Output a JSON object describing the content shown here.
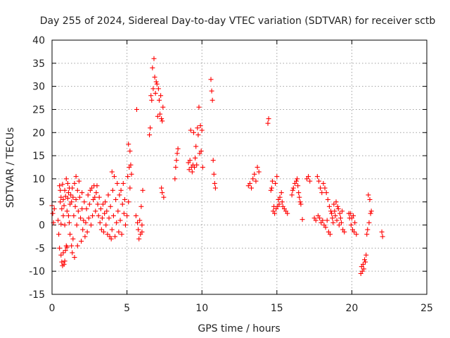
{
  "chart_data": {
    "type": "scatter",
    "title": "Day 255 of 2024, Sidereal Day-to-day VTEC variation (SDTVAR) for receiver sctb",
    "xlabel": "GPS time / hours",
    "ylabel": "SDTVAR / TECUs",
    "xlim": [
      0,
      25
    ],
    "ylim": [
      -15,
      40
    ],
    "x_ticks": [
      0,
      5,
      10,
      15,
      20,
      25
    ],
    "y_ticks": [
      -15,
      -10,
      -5,
      0,
      5,
      10,
      15,
      20,
      25,
      30,
      35,
      40
    ],
    "x_tick_labels": [
      "0",
      "5",
      "10",
      "15",
      "20",
      "25"
    ],
    "y_tick_labels": [
      "-15",
      "-10",
      "-5",
      "0",
      "5",
      "10",
      "15",
      "20",
      "25",
      "30",
      "35",
      "40"
    ],
    "grid": true,
    "marker": "plus",
    "marker_color": "#ff0000",
    "series": [
      {
        "name": "sctb",
        "points": [
          [
            0.0,
            4.2
          ],
          [
            0.05,
            2.5
          ],
          [
            0.1,
            0.5
          ],
          [
            0.15,
            3.5
          ],
          [
            0.4,
            1.0
          ],
          [
            0.45,
            -2.0
          ],
          [
            0.5,
            -5.0
          ],
          [
            0.5,
            8.5
          ],
          [
            0.55,
            5.0
          ],
          [
            0.55,
            7.5
          ],
          [
            0.6,
            -6.5
          ],
          [
            0.6,
            0.2
          ],
          [
            0.6,
            6.0
          ],
          [
            0.65,
            -8.0
          ],
          [
            0.65,
            3.5
          ],
          [
            0.7,
            -8.8
          ],
          [
            0.7,
            8.8
          ],
          [
            0.75,
            -6.0
          ],
          [
            0.75,
            2.0
          ],
          [
            0.75,
            5.5
          ],
          [
            0.8,
            -8.5
          ],
          [
            0.8,
            4.2
          ],
          [
            0.85,
            -7.8
          ],
          [
            0.85,
            0.0
          ],
          [
            0.85,
            7.5
          ],
          [
            0.9,
            -5.5
          ],
          [
            0.9,
            6.2
          ],
          [
            0.95,
            -4.5
          ],
          [
            0.95,
            10.0
          ],
          [
            1.0,
            -4.8
          ],
          [
            1.0,
            3.0
          ],
          [
            1.05,
            5.8
          ],
          [
            1.05,
            9.0
          ],
          [
            1.1,
            2.0
          ],
          [
            1.1,
            7.0
          ],
          [
            1.15,
            0.5
          ],
          [
            1.15,
            8.0
          ],
          [
            1.2,
            -2.0
          ],
          [
            1.2,
            4.5
          ],
          [
            1.25,
            6.5
          ],
          [
            1.3,
            -4.5
          ],
          [
            1.3,
            5.0
          ],
          [
            1.35,
            -6.0
          ],
          [
            1.35,
            8.0
          ],
          [
            1.4,
            -3.0
          ],
          [
            1.4,
            6.0
          ],
          [
            1.45,
            2.0
          ],
          [
            1.5,
            -7.0
          ],
          [
            1.5,
            9.0
          ],
          [
            1.55,
            4.0
          ],
          [
            1.6,
            5.5
          ],
          [
            1.6,
            10.5
          ],
          [
            1.65,
            0.0
          ],
          [
            1.7,
            7.5
          ],
          [
            1.7,
            -4.5
          ],
          [
            1.75,
            3.0
          ],
          [
            1.8,
            9.5
          ],
          [
            1.85,
            6.0
          ],
          [
            1.9,
            1.5
          ],
          [
            1.95,
            -3.5
          ],
          [
            2.0,
            3.5
          ],
          [
            2.0,
            7.0
          ],
          [
            2.05,
            -1.0
          ],
          [
            2.1,
            1.0
          ],
          [
            2.15,
            5.0
          ],
          [
            2.2,
            -2.5
          ],
          [
            2.25,
            0.5
          ],
          [
            2.3,
            3.5
          ],
          [
            2.35,
            -1.5
          ],
          [
            2.4,
            6.5
          ],
          [
            2.45,
            1.5
          ],
          [
            2.5,
            4.5
          ],
          [
            2.55,
            7.5
          ],
          [
            2.6,
            0.0
          ],
          [
            2.65,
            8.0
          ],
          [
            2.7,
            2.0
          ],
          [
            2.75,
            5.5
          ],
          [
            2.8,
            8.5
          ],
          [
            2.85,
            6.0
          ],
          [
            2.9,
            3.0
          ],
          [
            2.95,
            7.0
          ],
          [
            3.0,
            8.5
          ],
          [
            3.05,
            4.5
          ],
          [
            3.1,
            2.0
          ],
          [
            3.15,
            6.0
          ],
          [
            3.2,
            0.5
          ],
          [
            3.25,
            3.5
          ],
          [
            3.3,
            -1.0
          ],
          [
            3.35,
            1.5
          ],
          [
            3.4,
            4.5
          ],
          [
            3.45,
            -1.5
          ],
          [
            3.5,
            2.5
          ],
          [
            3.55,
            5.0
          ],
          [
            3.6,
            0.0
          ],
          [
            3.65,
            3.0
          ],
          [
            3.7,
            -2.0
          ],
          [
            3.75,
            6.5
          ],
          [
            3.8,
            1.5
          ],
          [
            3.85,
            -2.5
          ],
          [
            3.9,
            4.0
          ],
          [
            3.95,
            -3.0
          ],
          [
            4.0,
            11.5
          ],
          [
            4.0,
            -1.0
          ],
          [
            4.05,
            7.5
          ],
          [
            4.1,
            2.0
          ],
          [
            4.15,
            10.5
          ],
          [
            4.2,
            -2.5
          ],
          [
            4.25,
            5.5
          ],
          [
            4.3,
            0.5
          ],
          [
            4.35,
            9.0
          ],
          [
            4.4,
            3.0
          ],
          [
            4.45,
            -1.5
          ],
          [
            4.5,
            6.5
          ],
          [
            4.55,
            1.0
          ],
          [
            4.6,
            7.5
          ],
          [
            4.65,
            -2.0
          ],
          [
            4.7,
            4.5
          ],
          [
            4.75,
            9.0
          ],
          [
            4.8,
            2.5
          ],
          [
            4.85,
            5.5
          ],
          [
            4.9,
            0.0
          ],
          [
            5.0,
            2.0
          ],
          [
            5.05,
            10.5
          ],
          [
            5.1,
            17.5
          ],
          [
            5.1,
            5.0
          ],
          [
            5.15,
            12.5
          ],
          [
            5.2,
            16.0
          ],
          [
            5.2,
            8.0
          ],
          [
            5.25,
            13.0
          ],
          [
            5.3,
            11.0
          ],
          [
            5.6,
            2.0
          ],
          [
            5.65,
            25.0
          ],
          [
            5.7,
            0.5
          ],
          [
            5.75,
            -1.0
          ],
          [
            5.8,
            -3.0
          ],
          [
            5.85,
            1.0
          ],
          [
            5.9,
            -2.0
          ],
          [
            5.95,
            4.0
          ],
          [
            6.0,
            0.0
          ],
          [
            6.05,
            7.5
          ],
          [
            6.0,
            -1.5
          ],
          [
            6.5,
            19.5
          ],
          [
            6.55,
            21.0
          ],
          [
            6.6,
            28.0
          ],
          [
            6.65,
            27.0
          ],
          [
            6.7,
            34.0
          ],
          [
            6.75,
            29.5
          ],
          [
            6.8,
            36.0
          ],
          [
            6.85,
            32.0
          ],
          [
            6.9,
            28.5
          ],
          [
            6.95,
            31.0
          ],
          [
            7.0,
            30.5
          ],
          [
            7.05,
            23.5
          ],
          [
            7.1,
            29.5
          ],
          [
            7.15,
            27.0
          ],
          [
            7.2,
            24.0
          ],
          [
            7.25,
            28.0
          ],
          [
            7.3,
            23.0
          ],
          [
            7.35,
            22.5
          ],
          [
            7.4,
            25.5
          ],
          [
            7.3,
            8.0
          ],
          [
            7.35,
            7.0
          ],
          [
            7.45,
            6.0
          ],
          [
            8.2,
            10.0
          ],
          [
            8.25,
            12.5
          ],
          [
            8.3,
            14.0
          ],
          [
            8.35,
            15.5
          ],
          [
            8.4,
            16.5
          ],
          [
            9.1,
            13.5
          ],
          [
            9.15,
            12.0
          ],
          [
            9.2,
            14.0
          ],
          [
            9.25,
            20.5
          ],
          [
            9.3,
            12.5
          ],
          [
            9.35,
            11.5
          ],
          [
            9.4,
            13.0
          ],
          [
            9.45,
            20.0
          ],
          [
            9.5,
            12.5
          ],
          [
            9.55,
            14.5
          ],
          [
            9.6,
            17.0
          ],
          [
            9.65,
            13.0
          ],
          [
            9.7,
            21.0
          ],
          [
            9.75,
            19.5
          ],
          [
            9.8,
            25.5
          ],
          [
            9.85,
            15.5
          ],
          [
            9.9,
            21.5
          ],
          [
            9.95,
            16.0
          ],
          [
            10.0,
            20.5
          ],
          [
            10.05,
            12.5
          ],
          [
            10.6,
            31.5
          ],
          [
            10.65,
            29.0
          ],
          [
            10.7,
            27.0
          ],
          [
            10.75,
            14.0
          ],
          [
            10.8,
            11.0
          ],
          [
            10.85,
            9.0
          ],
          [
            10.9,
            8.0
          ],
          [
            13.1,
            8.5
          ],
          [
            13.2,
            9.0
          ],
          [
            13.3,
            8.0
          ],
          [
            13.4,
            10.0
          ],
          [
            13.5,
            11.0
          ],
          [
            13.6,
            9.5
          ],
          [
            13.7,
            12.5
          ],
          [
            13.8,
            11.5
          ],
          [
            14.4,
            22.0
          ],
          [
            14.45,
            23.0
          ],
          [
            14.6,
            7.5
          ],
          [
            14.65,
            8.0
          ],
          [
            14.7,
            9.5
          ],
          [
            14.75,
            3.0
          ],
          [
            14.8,
            4.0
          ],
          [
            14.85,
            2.5
          ],
          [
            14.9,
            9.0
          ],
          [
            14.95,
            3.5
          ],
          [
            15.0,
            10.5
          ],
          [
            15.05,
            4.0
          ],
          [
            15.1,
            5.5
          ],
          [
            15.15,
            4.5
          ],
          [
            15.2,
            6.0
          ],
          [
            15.3,
            7.0
          ],
          [
            15.35,
            5.0
          ],
          [
            15.4,
            4.0
          ],
          [
            15.5,
            3.5
          ],
          [
            15.6,
            3.0
          ],
          [
            15.7,
            2.5
          ],
          [
            16.0,
            6.5
          ],
          [
            16.05,
            7.5
          ],
          [
            16.1,
            8.0
          ],
          [
            16.2,
            9.0
          ],
          [
            16.3,
            9.5
          ],
          [
            16.35,
            10.0
          ],
          [
            16.4,
            8.5
          ],
          [
            16.45,
            7.0
          ],
          [
            16.5,
            6.0
          ],
          [
            16.55,
            5.0
          ],
          [
            16.6,
            4.5
          ],
          [
            16.7,
            1.2
          ],
          [
            17.0,
            10.0
          ],
          [
            17.1,
            10.5
          ],
          [
            17.2,
            9.5
          ],
          [
            17.5,
            1.5
          ],
          [
            17.6,
            1.0
          ],
          [
            17.7,
            10.5
          ],
          [
            17.75,
            2.0
          ],
          [
            17.8,
            9.5
          ],
          [
            17.85,
            1.5
          ],
          [
            17.9,
            8.0
          ],
          [
            17.95,
            0.5
          ],
          [
            18.0,
            7.0
          ],
          [
            18.05,
            1.0
          ],
          [
            18.1,
            9.0
          ],
          [
            18.15,
            0.0
          ],
          [
            18.2,
            8.0
          ],
          [
            18.25,
            -0.5
          ],
          [
            18.3,
            7.0
          ],
          [
            18.35,
            1.0
          ],
          [
            18.4,
            5.5
          ],
          [
            18.45,
            -1.5
          ],
          [
            18.5,
            4.0
          ],
          [
            18.55,
            -2.0
          ],
          [
            18.6,
            3.0
          ],
          [
            18.65,
            2.5
          ],
          [
            18.7,
            1.5
          ],
          [
            18.75,
            0.5
          ],
          [
            18.8,
            4.5
          ],
          [
            18.85,
            3.0
          ],
          [
            18.9,
            2.0
          ],
          [
            18.95,
            5.0
          ],
          [
            19.0,
            1.0
          ],
          [
            19.05,
            4.0
          ],
          [
            19.1,
            3.5
          ],
          [
            19.15,
            0.0
          ],
          [
            19.2,
            2.5
          ],
          [
            19.25,
            1.5
          ],
          [
            19.3,
            0.5
          ],
          [
            19.35,
            3.0
          ],
          [
            19.4,
            -1.0
          ],
          [
            19.5,
            -1.5
          ],
          [
            19.8,
            2.5
          ],
          [
            19.85,
            1.5
          ],
          [
            19.9,
            2.5
          ],
          [
            19.95,
            0.0
          ],
          [
            20.0,
            1.5
          ],
          [
            20.05,
            -1.0
          ],
          [
            20.1,
            2.0
          ],
          [
            20.15,
            -1.5
          ],
          [
            20.2,
            0.5
          ],
          [
            20.3,
            -2.0
          ],
          [
            20.6,
            -10.5
          ],
          [
            20.65,
            -9.0
          ],
          [
            20.7,
            -10.0
          ],
          [
            20.75,
            -8.5
          ],
          [
            20.8,
            -9.5
          ],
          [
            20.85,
            -7.5
          ],
          [
            20.9,
            -8.0
          ],
          [
            20.95,
            -6.5
          ],
          [
            21.0,
            -2.0
          ],
          [
            21.05,
            -1.0
          ],
          [
            21.1,
            6.5
          ],
          [
            21.15,
            0.5
          ],
          [
            21.2,
            5.5
          ],
          [
            21.25,
            2.5
          ],
          [
            21.3,
            3.0
          ],
          [
            22.0,
            -1.5
          ],
          [
            22.05,
            -2.5
          ]
        ]
      }
    ]
  }
}
